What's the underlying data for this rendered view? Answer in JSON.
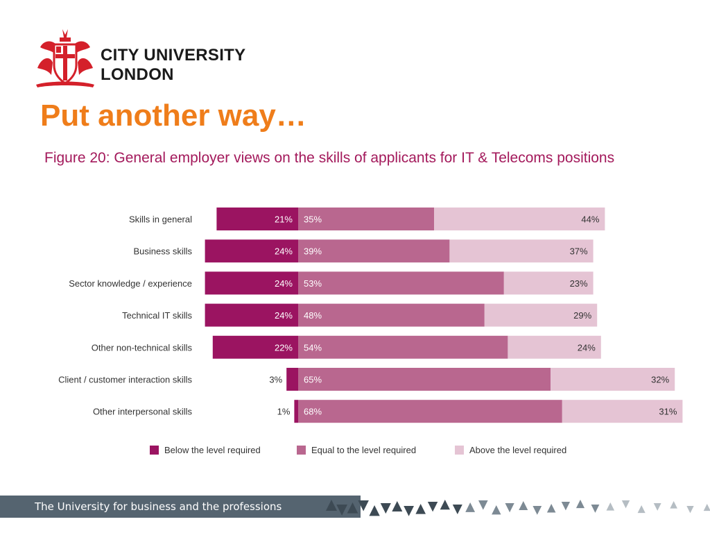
{
  "branding": {
    "university_line1": "CITY UNIVERSITY",
    "university_line2": "LONDON",
    "crest_icon": "coat-of-arms-icon",
    "footer_tagline": "The University for business and the professions"
  },
  "slide": {
    "headline": "Put another way…"
  },
  "colors": {
    "headline": "#ef7d1a",
    "figure_title": "#a3195b",
    "below": "#9b1461",
    "equal": "#b9678f",
    "above": "#e5c4d4",
    "footer_band": "#556470"
  },
  "chart_data": {
    "type": "bar",
    "orientation": "horizontal",
    "stacked": true,
    "title": "Figure 20: General employer views on the skills of applicants for IT & Telecoms positions",
    "categories": [
      "Skills in general",
      "Business skills",
      "Sector knowledge / experience",
      "Technical IT skills",
      "Other non-technical skills",
      "Client / customer interaction skills",
      "Other interpersonal skills"
    ],
    "series": [
      {
        "name": "Below the level required",
        "values": [
          21,
          24,
          24,
          24,
          22,
          3,
          1
        ],
        "labels": [
          "21%",
          "24%",
          "24%",
          "24%",
          "22%",
          "3%",
          "1%"
        ]
      },
      {
        "name": "Equal to the level required",
        "values": [
          35,
          39,
          53,
          48,
          54,
          65,
          68
        ],
        "labels": [
          "35%",
          "39%",
          "53%",
          "48%",
          "54%",
          "65%",
          "68%"
        ]
      },
      {
        "name": "Above the level required",
        "values": [
          44,
          37,
          23,
          29,
          24,
          32,
          31
        ],
        "labels": [
          "44%",
          "37%",
          "23%",
          "29%",
          "24%",
          "32%",
          "31%"
        ]
      }
    ],
    "unit": "%",
    "legend_position": "bottom",
    "grid": false
  }
}
